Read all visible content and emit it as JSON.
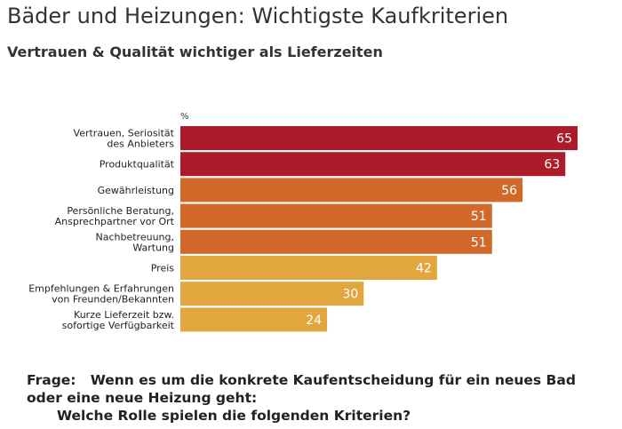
{
  "header": {
    "title": "Bäder und Heizungen: Wichtigste Kaufkriterien",
    "subtitle": "Vertrauen & Qualität wichtiger als Lieferzeiten"
  },
  "chart_data": {
    "type": "bar",
    "orientation": "horizontal",
    "unit": "%",
    "categories": [
      [
        "Vertrauen, Seriosität",
        "des Anbieters"
      ],
      [
        "Produktqualität"
      ],
      [
        "Gewährleistung"
      ],
      [
        "Persönliche Beratung,",
        "Ansprechpartner vor Ort"
      ],
      [
        "Nachbetreuung,",
        "Wartung"
      ],
      [
        "Preis"
      ],
      [
        "Empfehlungen & Erfahrungen",
        "von Freunden/Bekannten"
      ],
      [
        "Kurze Lieferzeit bzw.",
        "sofortige Verfügbarkeit"
      ]
    ],
    "values": [
      65,
      63,
      56,
      51,
      51,
      42,
      30,
      24
    ],
    "colors": [
      "#ad1a2a",
      "#ad1a2a",
      "#d0692a",
      "#d0692a",
      "#d0692a",
      "#e2a63e",
      "#e2a63e",
      "#e2a63e"
    ],
    "xlim": [
      0,
      65
    ],
    "grid": false,
    "legend": "none",
    "data_labels": true
  },
  "footer": {
    "question_label": "Frage:",
    "question_line1": "Wenn es um die konkrete Kaufentscheidung für ein neues Bad",
    "question_line2": "oder eine neue Heizung geht:",
    "question_line3": "Welche Rolle spielen die folgenden Kriterien?"
  }
}
